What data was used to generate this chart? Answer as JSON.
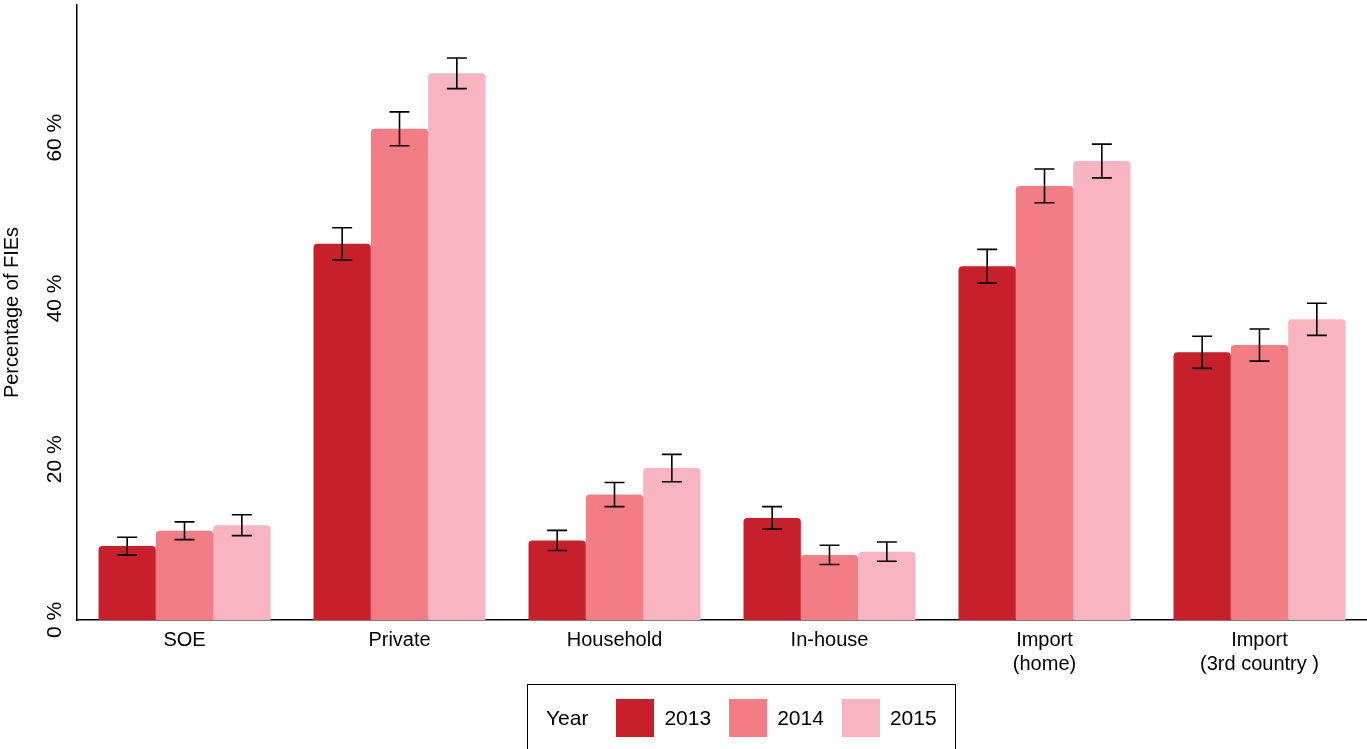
{
  "chart_data": {
    "type": "bar",
    "ylabel": "Percentage of FIEs",
    "legend_title": "Year",
    "legend": "bottom",
    "grid": false,
    "categories": [
      "SOE",
      "Private",
      "Household",
      "In-house",
      "Import\n(home)",
      "Import\n(3rd country )"
    ],
    "series": [
      {
        "name": "2013",
        "color": "#c8202a",
        "values": [
          9.2,
          46.8,
          9.9,
          12.7,
          44.0,
          33.3
        ],
        "errors": [
          1.1,
          2.0,
          1.25,
          1.4,
          2.1,
          2.0
        ]
      },
      {
        "name": "2014",
        "color": "#f27d84",
        "values": [
          11.1,
          61.1,
          15.6,
          8.1,
          54.0,
          34.2
        ],
        "errors": [
          1.1,
          2.1,
          1.5,
          1.2,
          2.1,
          2.0
        ]
      },
      {
        "name": "2015",
        "color": "#f8b4c0",
        "values": [
          11.8,
          68.0,
          18.9,
          8.5,
          57.1,
          37.4
        ],
        "errors": [
          1.3,
          1.9,
          1.7,
          1.2,
          2.1,
          2.0
        ]
      }
    ],
    "ylim": [
      0,
      76.5
    ],
    "yticks": [
      {
        "value": 0,
        "label": "0 %"
      },
      {
        "value": 20,
        "label": "20 %"
      },
      {
        "value": 40,
        "label": "40 %"
      },
      {
        "value": 60,
        "label": "60 %"
      }
    ]
  }
}
